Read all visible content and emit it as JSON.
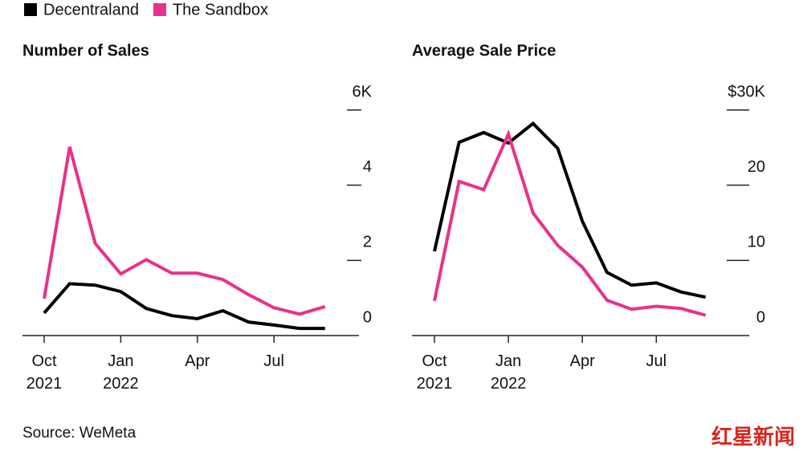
{
  "chart_data": [
    {
      "type": "line",
      "title": "Number of Sales",
      "categories": [
        "Oct 2021",
        null,
        null,
        "Jan 2022",
        null,
        null,
        "Apr",
        null,
        null,
        "Jul",
        null,
        null
      ],
      "series": [
        {
          "name": "Decentraland",
          "color": "#000000",
          "values": [
            0.6,
            1.38,
            1.34,
            1.17,
            0.72,
            0.53,
            0.45,
            0.66,
            0.36,
            0.28,
            0.19,
            0.19
          ]
        },
        {
          "name": "The Sandbox",
          "color": "#e8318a",
          "values": [
            0.98,
            5.02,
            2.45,
            1.64,
            2.02,
            1.66,
            1.66,
            1.49,
            1.09,
            0.74,
            0.57,
            0.77
          ]
        }
      ],
      "ylim": [
        0,
        6
      ],
      "yticks": [
        0,
        2,
        4,
        {
          "value": 6,
          "label": "6K"
        }
      ]
    },
    {
      "type": "line",
      "title": "Average Sale Price",
      "categories": [
        "Oct 2021",
        null,
        null,
        "Jan 2022",
        null,
        null,
        "Apr",
        null,
        null,
        "Jul",
        null,
        null
      ],
      "series": [
        {
          "name": "Decentraland",
          "color": "#000000",
          "values": [
            11.2,
            25.7,
            27.0,
            25.6,
            28.2,
            24.9,
            15.2,
            8.4,
            6.7,
            7.0,
            5.8,
            5.1
          ]
        },
        {
          "name": "The Sandbox",
          "color": "#e8318a",
          "values": [
            4.6,
            20.5,
            19.4,
            26.8,
            16.3,
            12.0,
            9.1,
            4.7,
            3.5,
            3.9,
            3.6,
            2.7
          ]
        }
      ],
      "ylim": [
        0,
        30
      ],
      "yticks": [
        0,
        10,
        20,
        {
          "value": 30,
          "label": "$30K"
        }
      ]
    }
  ],
  "source": "Source: WeMeta",
  "watermark": "红星新闻"
}
